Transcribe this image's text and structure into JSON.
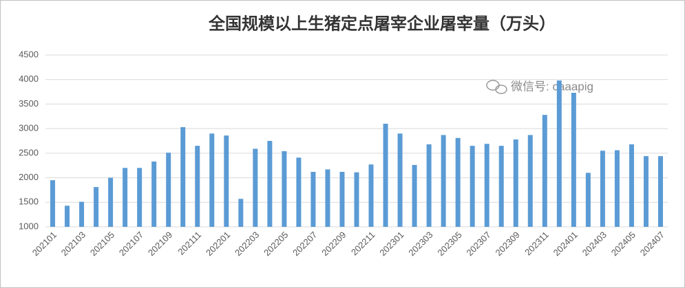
{
  "chart_data": {
    "type": "bar",
    "title": "全国规模以上生猪定点屠宰企业屠宰量（万头）",
    "annotation": "微信号: caaapig",
    "categories": [
      "202101",
      null,
      "202103",
      null,
      "202105",
      null,
      "202107",
      null,
      "202109",
      null,
      "202111",
      null,
      "202201",
      null,
      "202203",
      null,
      "202205",
      null,
      "202207",
      null,
      "202209",
      null,
      "202211",
      null,
      "202301",
      null,
      "202303",
      null,
      "202305",
      null,
      "202307",
      null,
      "202309",
      null,
      "202311",
      null,
      "202401",
      null,
      "202403",
      null,
      "202405",
      null,
      "202407"
    ],
    "values": [
      1950,
      1430,
      1510,
      1810,
      2000,
      2200,
      2200,
      2330,
      2510,
      3030,
      2650,
      2900,
      2860,
      1570,
      2590,
      2750,
      2540,
      2410,
      2120,
      2170,
      2120,
      2110,
      2270,
      3100,
      2900,
      2260,
      2680,
      2870,
      2810,
      2650,
      2690,
      2650,
      2780,
      2870,
      3280,
      3980,
      3730,
      2100,
      2550,
      2560,
      2680,
      2440,
      2440
    ],
    "color": "#5b9bd5",
    "ylim": [
      1000,
      4500
    ],
    "yticks": [
      1000,
      1500,
      2000,
      2500,
      3000,
      3500,
      4000,
      4500
    ],
    "grid": true
  }
}
